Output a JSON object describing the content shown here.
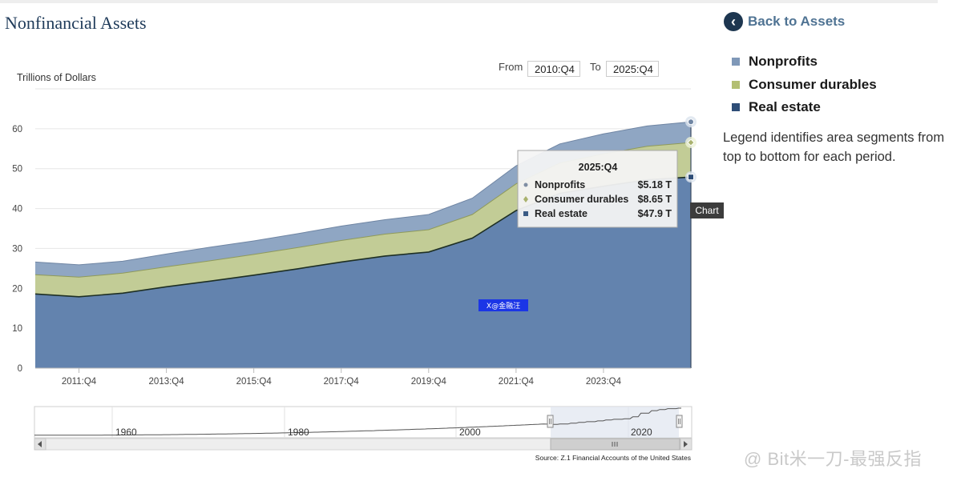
{
  "page_title": "Nonfinancial Assets",
  "range": {
    "from_label": "From",
    "from_value": "2010:Q4",
    "to_label": "To",
    "to_value": "2025:Q4"
  },
  "back_link": "Back to Assets",
  "legend_note": "Legend identifies area segments from top to bottom for each period.",
  "source": "Source: Z.1 Financial Accounts of the United States",
  "watermark_badge": "X@金融汪",
  "watermark_corner": "@ Bit米一刀-最强反指",
  "export_tooltip": "Chart",
  "navigator_labels": [
    "1960",
    "1980",
    "2000",
    "2020"
  ],
  "colors": {
    "nonprofits": "#8fa6c3",
    "consumer_durables": "#c2cc96",
    "real_estate": "#6383ae",
    "title": "#1f3b5a",
    "back_circle": "#1d3650"
  },
  "tooltip": {
    "period": "2025:Q4",
    "rows": [
      {
        "label": "Nonprofits",
        "value": "$5.18 T"
      },
      {
        "label": "Consumer durables",
        "value": "$8.65 T"
      },
      {
        "label": "Real estate",
        "value": "$47.9 T"
      }
    ]
  },
  "chart_data": {
    "type": "area",
    "stacked": true,
    "title": "Nonfinancial Assets",
    "ylabel": "Trillions of Dollars",
    "xlabel": "",
    "ylim": [
      0,
      70
    ],
    "yticks": [
      0,
      10,
      20,
      30,
      40,
      50,
      60
    ],
    "x": [
      "2010:Q4",
      "2011:Q4",
      "2012:Q4",
      "2013:Q4",
      "2014:Q4",
      "2015:Q4",
      "2016:Q4",
      "2017:Q4",
      "2018:Q4",
      "2019:Q4",
      "2020:Q4",
      "2021:Q4",
      "2022:Q4",
      "2023:Q4",
      "2024:Q4",
      "2025:Q4"
    ],
    "xtick_labels": [
      "2011:Q4",
      "2013:Q4",
      "2015:Q4",
      "2017:Q4",
      "2019:Q4",
      "2021:Q4",
      "2023:Q4"
    ],
    "legend": [
      "Nonprofits",
      "Consumer durables",
      "Real estate"
    ],
    "series": [
      {
        "name": "Real estate",
        "values": [
          18.6,
          17.9,
          18.8,
          20.4,
          21.8,
          23.3,
          24.9,
          26.6,
          28.1,
          29.1,
          32.6,
          39.5,
          43.8,
          45.6,
          47.2,
          47.9
        ]
      },
      {
        "name": "Consumer durables",
        "values": [
          4.8,
          4.9,
          5.0,
          5.0,
          5.1,
          5.2,
          5.3,
          5.4,
          5.5,
          5.6,
          5.9,
          6.7,
          7.6,
          8.1,
          8.4,
          8.65
        ]
      },
      {
        "name": "Nonprofits",
        "values": [
          3.2,
          3.1,
          3.0,
          3.2,
          3.4,
          3.4,
          3.5,
          3.6,
          3.6,
          3.8,
          4.1,
          4.5,
          4.8,
          5.0,
          5.1,
          5.18
        ]
      }
    ]
  }
}
